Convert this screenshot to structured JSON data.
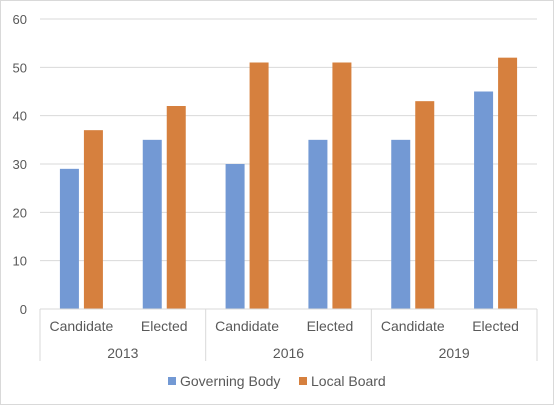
{
  "chart_data": {
    "type": "bar",
    "groups": [
      {
        "label": "2013",
        "categories": [
          "Candidate",
          "Elected"
        ]
      },
      {
        "label": "2016",
        "categories": [
          "Candidate",
          "Elected"
        ]
      },
      {
        "label": "2019",
        "categories": [
          "Candidate",
          "Elected"
        ]
      }
    ],
    "series": [
      {
        "name": "Governing Body",
        "color": "#7399d4",
        "values": [
          29,
          35,
          30,
          35,
          35,
          45
        ]
      },
      {
        "name": "Local Board",
        "color": "#d6803e",
        "values": [
          37,
          42,
          51,
          51,
          43,
          52
        ]
      }
    ],
    "ylim": [
      0,
      60
    ],
    "yticks": [
      0,
      10,
      20,
      30,
      40,
      50,
      60
    ],
    "grid": true,
    "legend_position": "bottom"
  }
}
